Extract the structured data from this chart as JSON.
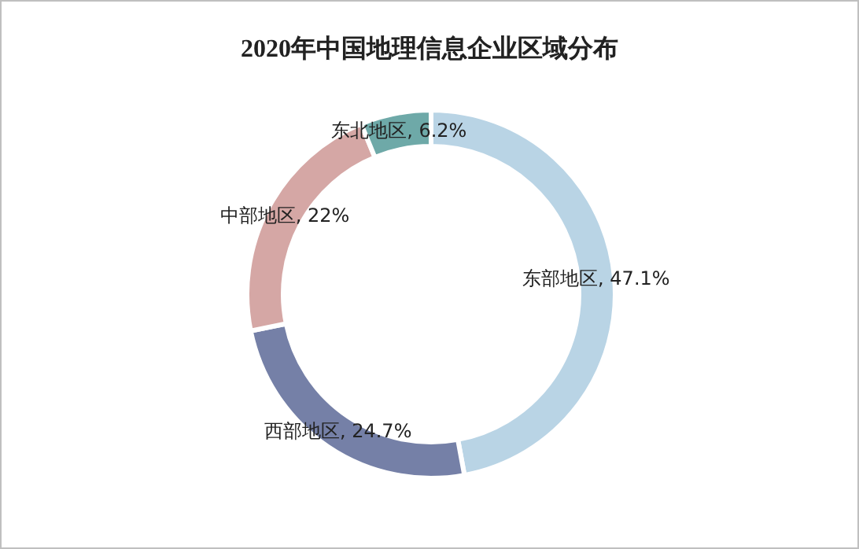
{
  "chart_data": {
    "type": "donut",
    "title": "2020年中国地理信息企业区域分布",
    "categories": [
      "东部地区",
      "西部地区",
      "中部地区",
      "东北地区"
    ],
    "value_labels": [
      "47.1%",
      "24.7%",
      "22%",
      "6.2%"
    ],
    "values": [
      47.1,
      24.7,
      22,
      6.2
    ],
    "colors": [
      "#b9d4e5",
      "#7580a7",
      "#d5a7a5",
      "#6ea9a8"
    ],
    "data_labels": true
  }
}
